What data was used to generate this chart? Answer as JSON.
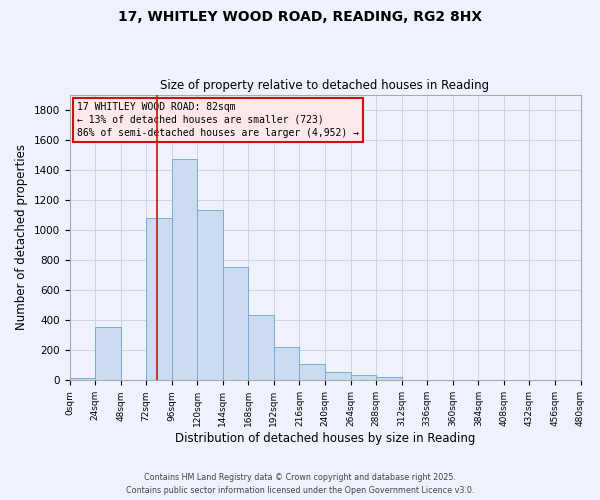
{
  "title": "17, WHITLEY WOOD ROAD, READING, RG2 8HX",
  "subtitle": "Size of property relative to detached houses in Reading",
  "xlabel": "Distribution of detached houses by size in Reading",
  "ylabel": "Number of detached properties",
  "bar_color": "#ccdcf0",
  "bar_edge_color": "#7aaad0",
  "background_color": "#eef2fc",
  "grid_color": "#c8d0e0",
  "annotation_box_facecolor": "#fce8e8",
  "annotation_box_edge": "#cc1111",
  "vline_color": "#cc1111",
  "vline_x": 82,
  "bin_edges": [
    0,
    24,
    48,
    72,
    96,
    120,
    144,
    168,
    192,
    216,
    240,
    264,
    288,
    312,
    336,
    360,
    384,
    408,
    432,
    456,
    480
  ],
  "bin_values": [
    15,
    355,
    0,
    1080,
    1470,
    1130,
    755,
    435,
    225,
    110,
    55,
    35,
    20,
    0,
    0,
    0,
    0,
    0,
    0,
    0
  ],
  "annotation_lines": [
    "17 WHITLEY WOOD ROAD: 82sqm",
    "← 13% of detached houses are smaller (723)",
    "86% of semi-detached houses are larger (4,952) →"
  ],
  "footer_lines": [
    "Contains HM Land Registry data © Crown copyright and database right 2025.",
    "Contains public sector information licensed under the Open Government Licence v3.0."
  ],
  "ylim": [
    0,
    1900
  ],
  "xlim": [
    0,
    480
  ],
  "xtick_step": 24,
  "ytick_step": 200,
  "figsize": [
    6.0,
    5.0
  ],
  "dpi": 100
}
